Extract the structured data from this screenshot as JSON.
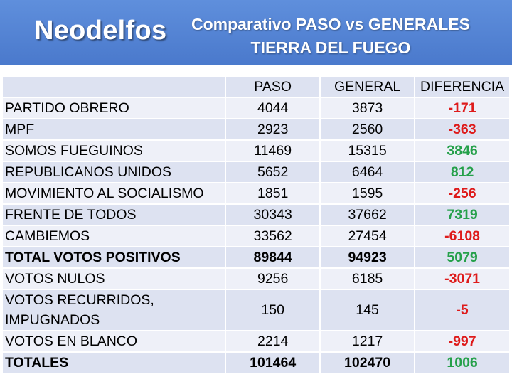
{
  "header": {
    "brand": "Neodelfos",
    "title_line1": "Comparativo PASO vs GENERALES",
    "title_line2": "TIERRA DEL FUEGO"
  },
  "table": {
    "columns": [
      "",
      "PASO",
      "GENERAL",
      "DIFERENCIA"
    ],
    "rows": [
      {
        "name": "PARTIDO OBRERO",
        "paso": "4044",
        "general": "3873",
        "diff": "-171"
      },
      {
        "name": "MPF",
        "paso": "2923",
        "general": "2560",
        "diff": "-363"
      },
      {
        "name": "SOMOS FUEGUINOS",
        "paso": "11469",
        "general": "15315",
        "diff": "3846"
      },
      {
        "name": "REPUBLICANOS UNIDOS",
        "paso": "5652",
        "general": "6464",
        "diff": "812"
      },
      {
        "name": "MOVIMIENTO AL SOCIALISMO",
        "paso": "1851",
        "general": "1595",
        "diff": "-256"
      },
      {
        "name": "FRENTE DE TODOS",
        "paso": "30343",
        "general": "37662",
        "diff": "7319"
      },
      {
        "name": "CAMBIEMOS",
        "paso": "33562",
        "general": "27454",
        "diff": "-6108"
      },
      {
        "name": "TOTAL VOTOS POSITIVOS",
        "paso": "89844",
        "general": "94923",
        "diff": "5079"
      },
      {
        "name": "VOTOS NULOS",
        "paso": "9256",
        "general": "6185",
        "diff": "-3071"
      },
      {
        "name": "VOTOS RECURRIDOS, IMPUGNADOS",
        "paso": "150",
        "general": "145",
        "diff": "-5"
      },
      {
        "name": "VOTOS EN BLANCO",
        "paso": "2214",
        "general": "1217",
        "diff": "-997"
      },
      {
        "name": "TOTALES",
        "paso": "101464",
        "general": "102470",
        "diff": "1006"
      }
    ]
  },
  "colors": {
    "banner": "#4a79cc",
    "positive": "#25a04a",
    "negative": "#de1b1b"
  }
}
